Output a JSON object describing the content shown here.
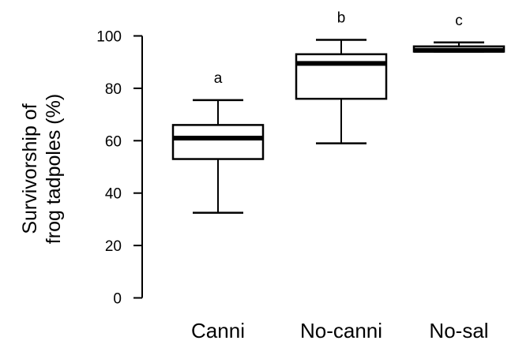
{
  "chart_data": {
    "type": "box",
    "ylabel_lines": [
      "Survivorship of",
      "frog tadpoles (%)"
    ],
    "ylim": [
      0,
      100
    ],
    "yticks": [
      0,
      20,
      40,
      60,
      80,
      100
    ],
    "grid": false,
    "categories": [
      "Canni",
      "No-canni",
      "No-sal"
    ],
    "boxes": [
      {
        "category": "Canni",
        "whisker_low": 32.5,
        "q1": 53,
        "median": 61,
        "q3": 66,
        "whisker_high": 75.5,
        "group_label": "a"
      },
      {
        "category": "No-canni",
        "whisker_low": 59,
        "q1": 76,
        "median": 89.5,
        "q3": 93,
        "whisker_high": 98.5,
        "group_label": "b"
      },
      {
        "category": "No-sal",
        "whisker_low": 94,
        "q1": 94,
        "median": 94.5,
        "q3": 96,
        "whisker_high": 97.5,
        "group_label": "c"
      }
    ]
  }
}
